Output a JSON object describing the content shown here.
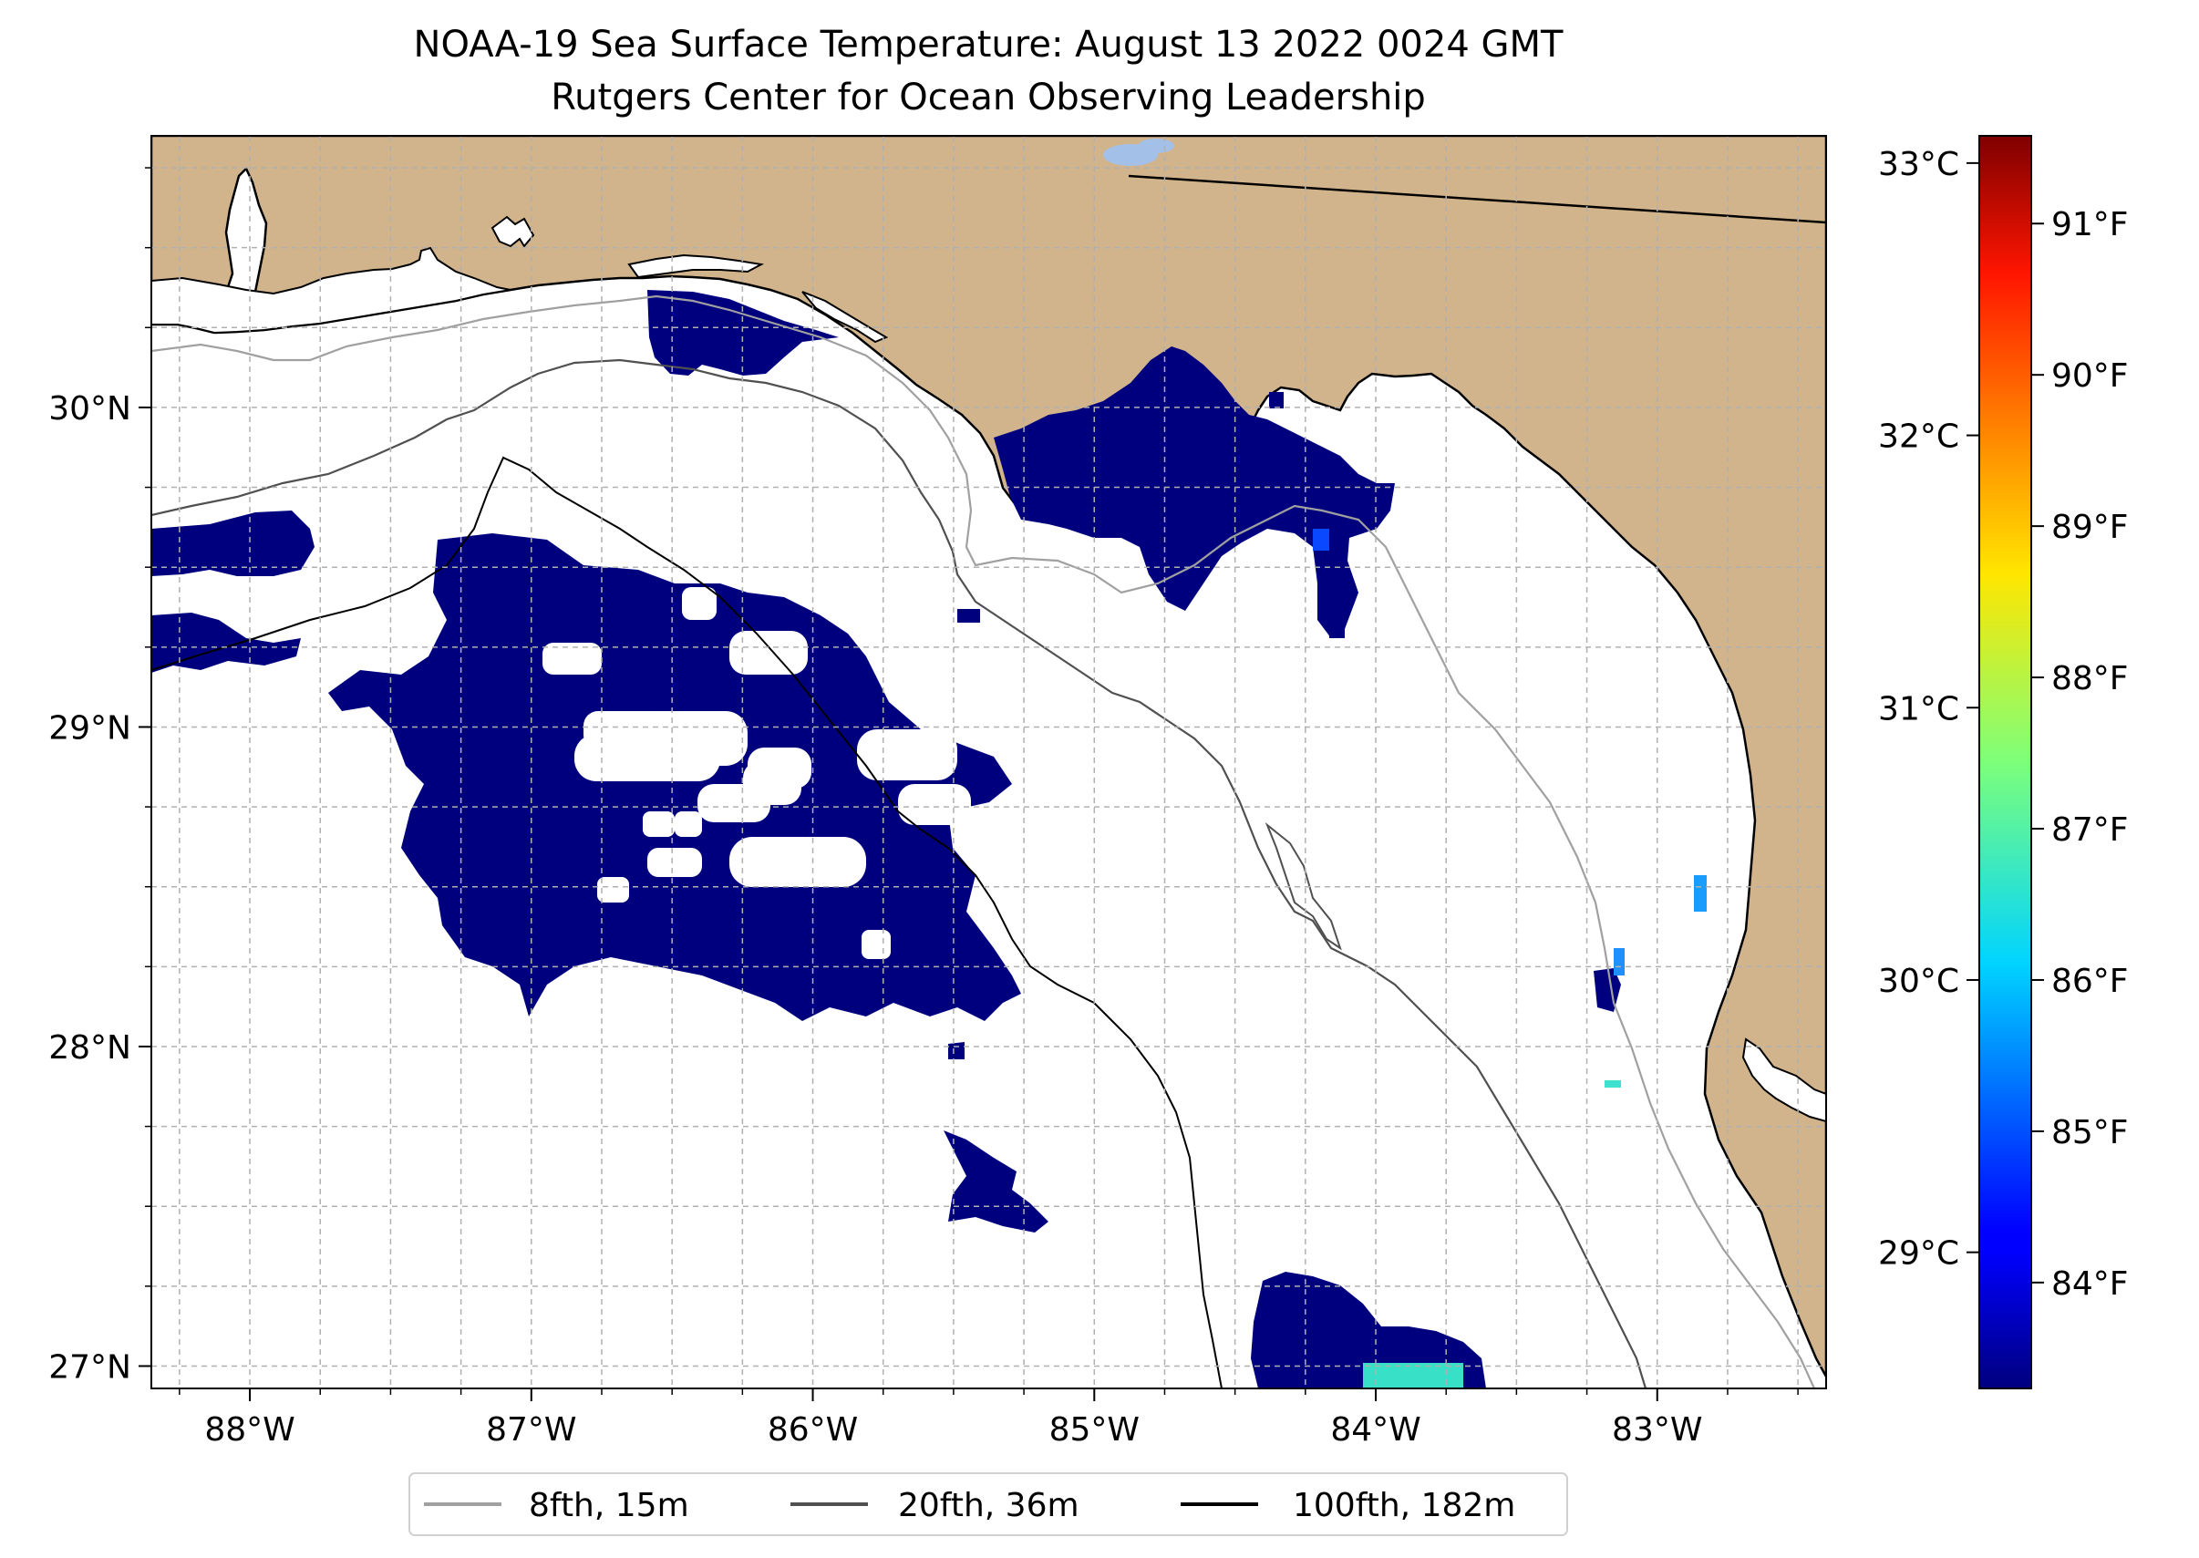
{
  "title_line1": "NOAA-19 Sea Surface Temperature: August 13 2022 0024 GMT",
  "title_line2": "Rutgers Center for Ocean Observing Leadership",
  "colors": {
    "land": "#d2b48c",
    "cold_patch": "#00007f",
    "lake": "#a3c0e8",
    "grid": "#b0b0b0"
  },
  "map": {
    "lon_range": [
      -88.35,
      -82.4
    ],
    "lat_range": [
      26.93,
      30.85
    ],
    "lon_ticks": [
      {
        "value": -88,
        "label": "88°W"
      },
      {
        "value": -87,
        "label": "87°W"
      },
      {
        "value": -86,
        "label": "86°W"
      },
      {
        "value": -85,
        "label": "85°W"
      },
      {
        "value": -84,
        "label": "84°W"
      },
      {
        "value": -83,
        "label": "83°W"
      }
    ],
    "lat_ticks": [
      {
        "value": 30,
        "label": "30°N"
      },
      {
        "value": 29,
        "label": "29°N"
      },
      {
        "value": 28,
        "label": "28°N"
      },
      {
        "value": 27,
        "label": "27°N"
      }
    ]
  },
  "colorbar": {
    "colormap": "jet",
    "celsius_range": [
      28.5,
      33.1
    ],
    "celsius_ticks": [
      {
        "value": 29,
        "label": "29°C"
      },
      {
        "value": 30,
        "label": "30°C"
      },
      {
        "value": 31,
        "label": "31°C"
      },
      {
        "value": 32,
        "label": "32°C"
      },
      {
        "value": 33,
        "label": "33°C"
      }
    ],
    "fahrenheit_ticks": [
      {
        "value": 84,
        "label": "84°F"
      },
      {
        "value": 85,
        "label": "85°F"
      },
      {
        "value": 86,
        "label": "86°F"
      },
      {
        "value": 87,
        "label": "87°F"
      },
      {
        "value": 88,
        "label": "88°F"
      },
      {
        "value": 89,
        "label": "89°F"
      },
      {
        "value": 90,
        "label": "90°F"
      },
      {
        "value": 91,
        "label": "91°F"
      }
    ]
  },
  "legend": {
    "location": "bottom-center",
    "items": [
      {
        "label": "8fth, 15m",
        "color": "#a0a0a0"
      },
      {
        "label": "20fth, 36m",
        "color": "#505050"
      },
      {
        "label": "100fth, 182m",
        "color": "#000000"
      }
    ]
  }
}
